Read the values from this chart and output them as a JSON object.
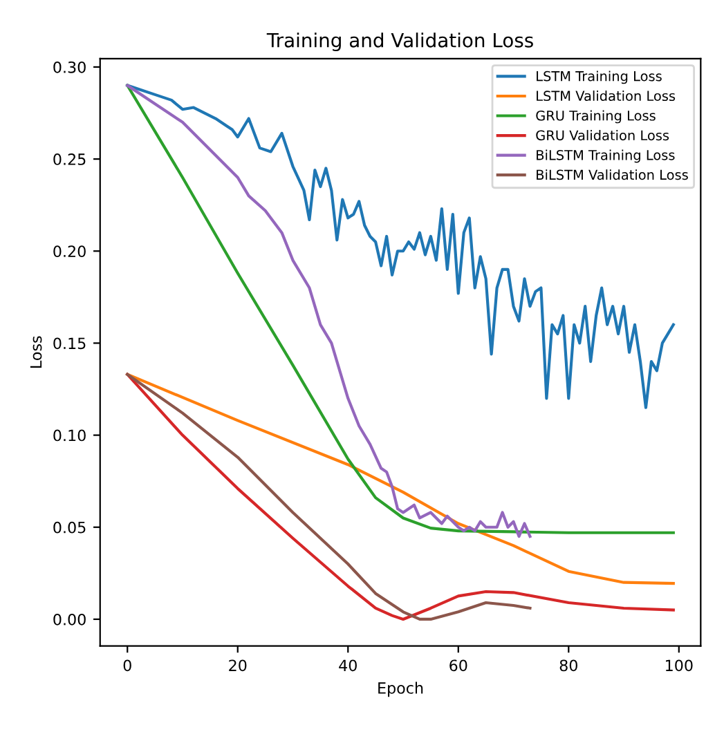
{
  "chart_data": {
    "type": "line",
    "title": "Training and Validation Loss",
    "xlabel": "Epoch",
    "ylabel": "Loss",
    "xlim": [
      -4.95,
      103.95
    ],
    "ylim": [
      -0.0145,
      0.3045
    ],
    "xticks": [
      0,
      20,
      40,
      60,
      80,
      100
    ],
    "yticks": [
      {
        "value": 0,
        "label": "0.00"
      },
      {
        "value": 0.05,
        "label": "0.05"
      },
      {
        "value": 0.1,
        "label": "0.10"
      },
      {
        "value": 0.15,
        "label": "0.15"
      },
      {
        "value": 0.2,
        "label": "0.20"
      },
      {
        "value": 0.25,
        "label": "0.25"
      },
      {
        "value": 0.3,
        "label": "0.30"
      }
    ],
    "grid": false,
    "legend": "top right",
    "marker": "none",
    "line_style": "solid",
    "series": [
      {
        "name": "LSTM Training Loss",
        "color": "#1f77b4",
        "x": [
          0,
          5,
          8,
          10,
          12,
          14,
          16,
          18,
          19,
          20,
          22,
          24,
          26,
          28,
          30,
          32,
          33,
          34,
          35,
          36,
          37,
          38,
          39,
          40,
          41,
          42,
          43,
          44,
          45,
          46,
          47,
          48,
          49,
          50,
          51,
          52,
          53,
          54,
          55,
          56,
          57,
          58,
          59,
          60,
          61,
          62,
          63,
          64,
          65,
          66,
          67,
          68,
          69,
          70,
          71,
          72,
          73,
          74,
          75,
          76,
          77,
          78,
          79,
          80,
          81,
          82,
          83,
          84,
          85,
          86,
          87,
          88,
          89,
          90,
          91,
          92,
          93,
          94,
          95,
          96,
          97,
          98,
          99
        ],
        "values": [
          0.29,
          0.285,
          0.282,
          0.277,
          0.278,
          0.275,
          0.272,
          0.268,
          0.266,
          0.262,
          0.272,
          0.256,
          0.254,
          0.264,
          0.246,
          0.233,
          0.217,
          0.244,
          0.235,
          0.245,
          0.233,
          0.206,
          0.228,
          0.218,
          0.22,
          0.227,
          0.214,
          0.208,
          0.205,
          0.192,
          0.208,
          0.187,
          0.2,
          0.2,
          0.205,
          0.201,
          0.21,
          0.198,
          0.208,
          0.195,
          0.223,
          0.19,
          0.22,
          0.177,
          0.21,
          0.218,
          0.18,
          0.197,
          0.185,
          0.144,
          0.18,
          0.19,
          0.19,
          0.17,
          0.162,
          0.185,
          0.17,
          0.178,
          0.18,
          0.12,
          0.16,
          0.155,
          0.165,
          0.12,
          0.16,
          0.15,
          0.17,
          0.14,
          0.165,
          0.18,
          0.16,
          0.17,
          0.155,
          0.17,
          0.145,
          0.16,
          0.14,
          0.115,
          0.14,
          0.135,
          0.15,
          0.155,
          0.16
        ]
      },
      {
        "name": "LSTM Validation Loss",
        "color": "#ff7f0e",
        "x": [
          0,
          20,
          40,
          50,
          60,
          70,
          80,
          90,
          99
        ],
        "values": [
          0.133,
          0.108,
          0.084,
          0.069,
          0.052,
          0.04,
          0.026,
          0.02,
          0.0195
        ]
      },
      {
        "name": "GRU Training Loss",
        "color": "#2ca02c",
        "x": [
          0,
          10,
          20,
          30,
          40,
          45,
          50,
          55,
          60,
          70,
          80,
          99
        ],
        "values": [
          0.29,
          0.24,
          0.188,
          0.138,
          0.087,
          0.066,
          0.055,
          0.0495,
          0.048,
          0.0475,
          0.047,
          0.047
        ]
      },
      {
        "name": "GRU Validation Loss",
        "color": "#d62728",
        "x": [
          0,
          10,
          20,
          30,
          40,
          45,
          48,
          50,
          55,
          60,
          65,
          70,
          80,
          90,
          99
        ],
        "values": [
          0.133,
          0.1,
          0.071,
          0.044,
          0.018,
          0.006,
          0.002,
          0.0,
          0.006,
          0.0126,
          0.015,
          0.0145,
          0.009,
          0.006,
          0.005
        ]
      },
      {
        "name": "BiLSTM Training Loss",
        "color": "#9467bd",
        "x": [
          0,
          5,
          10,
          15,
          20,
          22,
          25,
          28,
          30,
          33,
          35,
          37,
          38,
          40,
          42,
          44,
          46,
          47,
          48,
          49,
          50,
          52,
          53,
          55,
          57,
          58,
          60,
          61,
          62,
          63,
          64,
          65,
          67,
          68,
          69,
          70,
          71,
          72,
          73
        ],
        "values": [
          0.29,
          0.28,
          0.27,
          0.255,
          0.24,
          0.23,
          0.222,
          0.21,
          0.195,
          0.18,
          0.16,
          0.15,
          0.14,
          0.12,
          0.105,
          0.095,
          0.082,
          0.08,
          0.072,
          0.06,
          0.058,
          0.062,
          0.055,
          0.058,
          0.052,
          0.056,
          0.05,
          0.048,
          0.05,
          0.048,
          0.053,
          0.05,
          0.05,
          0.058,
          0.05,
          0.053,
          0.045,
          0.052,
          0.045
        ]
      },
      {
        "name": "BiLSTM Validation Loss",
        "color": "#8c564b",
        "x": [
          0,
          10,
          20,
          30,
          40,
          45,
          50,
          53,
          55,
          60,
          65,
          70,
          73
        ],
        "values": [
          0.133,
          0.112,
          0.088,
          0.058,
          0.03,
          0.014,
          0.004,
          0.0,
          0.0,
          0.004,
          0.009,
          0.0075,
          0.006
        ]
      }
    ]
  }
}
